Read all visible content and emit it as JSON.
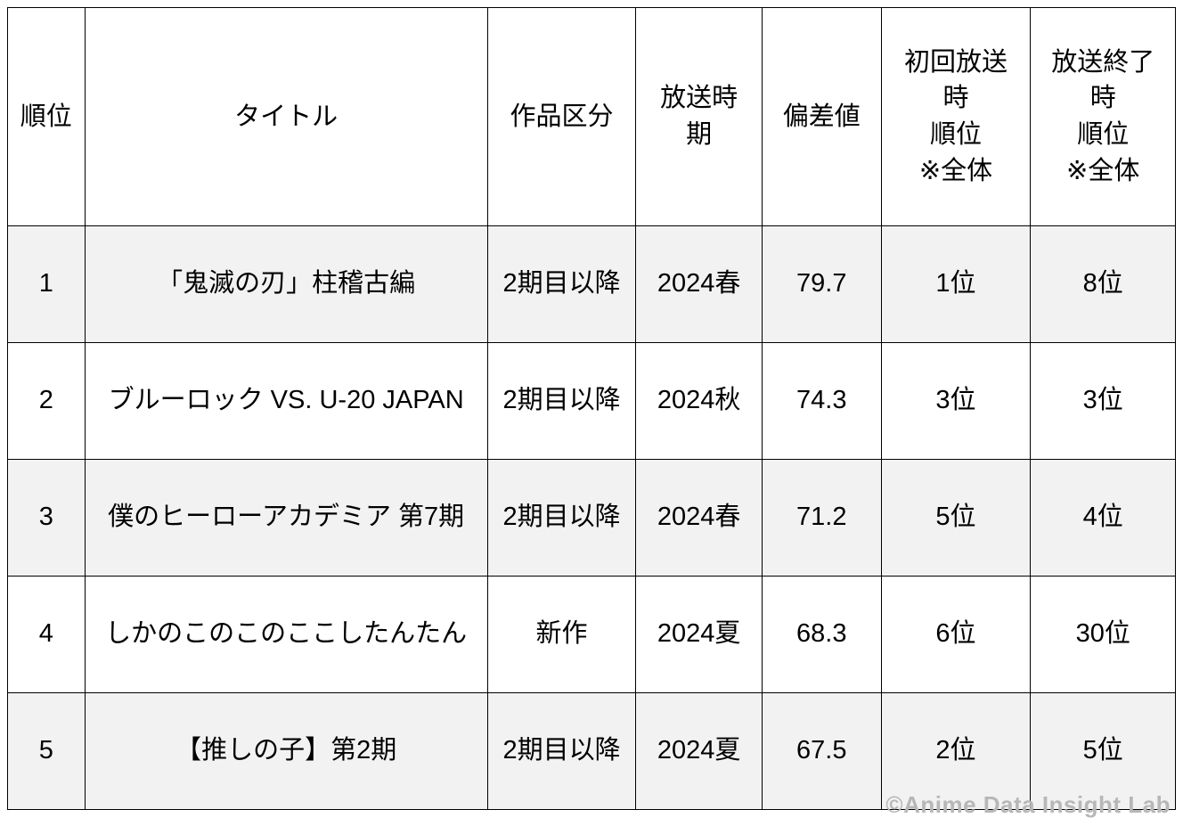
{
  "chart_data": {
    "type": "table",
    "title": "",
    "columns": [
      "順位",
      "タイトル",
      "作品区分",
      "放送時期",
      "偏差値",
      "初回放送時順位 ※全体",
      "放送終了時順位 ※全体"
    ],
    "rows": [
      [
        "1",
        "「鬼滅の刃」柱稽古編",
        "2期目以降",
        "2024春",
        "79.7",
        "1位",
        "8位"
      ],
      [
        "2",
        "ブルーロック VS. U-20 JAPAN",
        "2期目以降",
        "2024秋",
        "74.3",
        "3位",
        "3位"
      ],
      [
        "3",
        "僕のヒーローアカデミア 第7期",
        "2期目以降",
        "2024春",
        "71.2",
        "5位",
        "4位"
      ],
      [
        "4",
        "しかのこのこのここしたんたん",
        "新作",
        "2024夏",
        "68.3",
        "6位",
        "30位"
      ],
      [
        "5",
        "【推しの子】第2期",
        "2期目以降",
        "2024夏",
        "67.5",
        "2位",
        "5位"
      ]
    ]
  },
  "header_display": [
    "順位",
    "タイトル",
    "作品区分",
    "放送時\n期",
    "偏差値",
    "初回放送\n時\n順位\n※全体",
    "放送終了\n時\n順位\n※全体"
  ],
  "column_keys": [
    "rank",
    "title",
    "category",
    "season",
    "deviation",
    "first-broadcast-rank",
    "final-broadcast-rank"
  ],
  "watermark": "©Anime Data Insight Lab",
  "colors": {
    "border": "#000000",
    "row_alt": "#f2f2f2",
    "text": "#000000",
    "background": "#ffffff",
    "watermark": "#b7b7b7"
  }
}
